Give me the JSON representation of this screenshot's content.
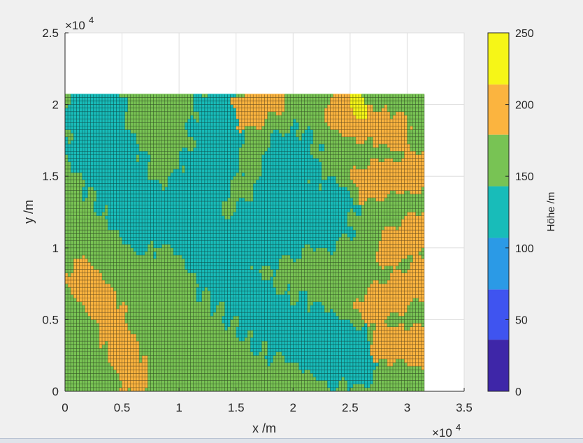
{
  "chart_data": {
    "type": "heatmap",
    "title": "",
    "xlabel": "x /m",
    "ylabel": "y /m",
    "xlim": [
      0,
      35000
    ],
    "ylim": [
      0,
      25000
    ],
    "x_ticks": [
      "0",
      "0.5",
      "1",
      "1.5",
      "2",
      "2.5",
      "3",
      "3.5"
    ],
    "y_ticks": [
      "0",
      "0.5",
      "1",
      "1.5",
      "2",
      "2.5"
    ],
    "x_multiplier": "×10",
    "x_multiplier_exp": "4",
    "y_multiplier": "×10",
    "y_multiplier_exp": "4",
    "grid": true,
    "data_extent": {
      "x": [
        0,
        31500
      ],
      "y": [
        0,
        20700
      ]
    },
    "cell_size_m": 250,
    "colorbar": {
      "label": "Höhe /m",
      "range": [
        0,
        250
      ],
      "ticks": [
        "0",
        "50",
        "100",
        "150",
        "200",
        "250"
      ],
      "levels": [
        {
          "from": 0,
          "to": 36,
          "color": "#3e26a8"
        },
        {
          "from": 36,
          "to": 71,
          "color": "#3f54f0"
        },
        {
          "from": 71,
          "to": 107,
          "color": "#2b9ae6"
        },
        {
          "from": 107,
          "to": 143,
          "color": "#18bcb9"
        },
        {
          "from": 143,
          "to": 179,
          "color": "#78c354"
        },
        {
          "from": 179,
          "to": 214,
          "color": "#fbb43f"
        },
        {
          "from": 214,
          "to": 250,
          "color": "#f6f617"
        }
      ]
    },
    "regions": {
      "base_level": 160,
      "valley_level": 130,
      "upland_level": 200,
      "peak_level": 230,
      "valleys": [
        [
          [
            2200,
            17000
          ],
          [
            7000,
            12000
          ],
          [
            11000,
            13000
          ],
          [
            13000,
            9000
          ],
          [
            18000,
            5000
          ],
          [
            22000,
            3500
          ],
          [
            25000,
            2500
          ]
        ],
        [
          [
            13000,
            9000
          ],
          [
            17000,
            11000
          ],
          [
            19000,
            14000
          ],
          [
            20000,
            16000
          ]
        ],
        [
          [
            11000,
            13000
          ],
          [
            13000,
            16000
          ],
          [
            13500,
            19000
          ]
        ],
        [
          [
            2500,
            20000
          ],
          [
            4000,
            16500
          ],
          [
            7000,
            12000
          ]
        ],
        [
          [
            17000,
            11000
          ],
          [
            20500,
            12000
          ],
          [
            23000,
            12500
          ]
        ]
      ],
      "valley_width_m": 2300,
      "uplands": [
        [
          [
            1500,
            8000
          ],
          [
            4000,
            5000
          ],
          [
            6000,
            1000
          ]
        ],
        [
          [
            24000,
            19500
          ],
          [
            29000,
            18000
          ]
        ],
        [
          [
            26500,
            14500
          ],
          [
            31500,
            15500
          ]
        ],
        [
          [
            28500,
            10000
          ],
          [
            31500,
            11500
          ]
        ],
        [
          [
            27000,
            6000
          ],
          [
            31500,
            8000
          ]
        ],
        [
          [
            28000,
            3500
          ],
          [
            31500,
            3000
          ]
        ],
        [
          [
            16000,
            19500
          ],
          [
            18000,
            20500
          ]
        ]
      ],
      "upland_width_m": 1300,
      "peaks": [
        [
          [
            25500,
            20300
          ],
          [
            26000,
            19500
          ]
        ]
      ],
      "peak_width_m": 600
    }
  }
}
